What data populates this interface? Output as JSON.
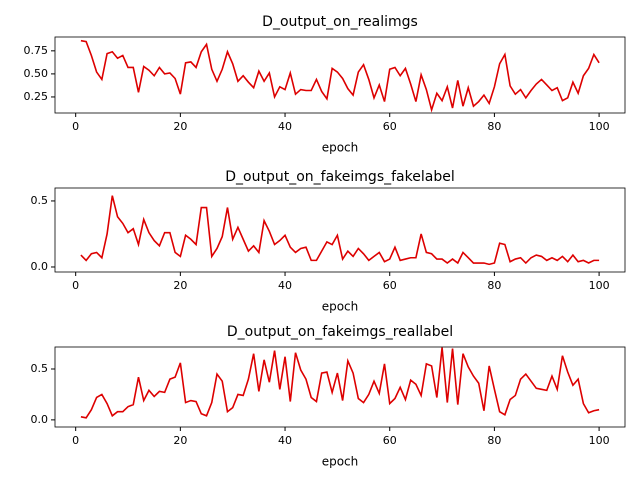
{
  "chart_data": [
    {
      "type": "line",
      "title": "D_output_on_realimgs",
      "xlabel": "epoch",
      "color": "#dd0000",
      "x": [
        1,
        2,
        3,
        4,
        5,
        6,
        7,
        8,
        9,
        10,
        11,
        12,
        13,
        14,
        15,
        16,
        17,
        18,
        19,
        20,
        21,
        22,
        23,
        24,
        25,
        26,
        27,
        28,
        29,
        30,
        31,
        32,
        33,
        34,
        35,
        36,
        37,
        38,
        39,
        40,
        41,
        42,
        43,
        44,
        45,
        46,
        47,
        48,
        49,
        50,
        51,
        52,
        53,
        54,
        55,
        56,
        57,
        58,
        59,
        60,
        61,
        62,
        63,
        64,
        65,
        66,
        67,
        68,
        69,
        70,
        71,
        72,
        73,
        74,
        75,
        76,
        77,
        78,
        79,
        80,
        81,
        82,
        83,
        84,
        85,
        86,
        87,
        88,
        89,
        90,
        91,
        92,
        93,
        94,
        95,
        96,
        97,
        98,
        99,
        100
      ],
      "values": [
        0.86,
        0.85,
        0.7,
        0.52,
        0.44,
        0.72,
        0.74,
        0.67,
        0.7,
        0.57,
        0.57,
        0.3,
        0.58,
        0.54,
        0.48,
        0.57,
        0.5,
        0.51,
        0.45,
        0.28,
        0.62,
        0.63,
        0.57,
        0.74,
        0.82,
        0.55,
        0.42,
        0.55,
        0.74,
        0.61,
        0.42,
        0.48,
        0.41,
        0.35,
        0.53,
        0.42,
        0.51,
        0.25,
        0.36,
        0.33,
        0.51,
        0.28,
        0.33,
        0.32,
        0.32,
        0.44,
        0.31,
        0.23,
        0.56,
        0.52,
        0.45,
        0.34,
        0.27,
        0.52,
        0.6,
        0.44,
        0.24,
        0.38,
        0.2,
        0.55,
        0.57,
        0.48,
        0.56,
        0.39,
        0.2,
        0.49,
        0.33,
        0.11,
        0.29,
        0.21,
        0.36,
        0.13,
        0.43,
        0.15,
        0.35,
        0.15,
        0.2,
        0.27,
        0.18,
        0.36,
        0.61,
        0.71,
        0.37,
        0.28,
        0.33,
        0.24,
        0.32,
        0.39,
        0.44,
        0.38,
        0.32,
        0.35,
        0.21,
        0.24,
        0.41,
        0.29,
        0.48,
        0.56,
        0.71,
        0.62
      ],
      "xlim": [
        -3.95,
        104.95
      ],
      "xticks": [
        0,
        20,
        40,
        60,
        80,
        100
      ],
      "ylim": [
        0.076,
        0.9
      ],
      "yticks": [
        {
          "value": 0.25,
          "label": "0.25"
        },
        {
          "value": 0.5,
          "label": "0.50"
        },
        {
          "value": 0.75,
          "label": "0.75"
        }
      ]
    },
    {
      "type": "line",
      "title": "D_output_on_fakeimgs_fakelabel",
      "xlabel": "epoch",
      "color": "#dd0000",
      "x": [
        1,
        2,
        3,
        4,
        5,
        6,
        7,
        8,
        9,
        10,
        11,
        12,
        13,
        14,
        15,
        16,
        17,
        18,
        19,
        20,
        21,
        22,
        23,
        24,
        25,
        26,
        27,
        28,
        29,
        30,
        31,
        32,
        33,
        34,
        35,
        36,
        37,
        38,
        39,
        40,
        41,
        42,
        43,
        44,
        45,
        46,
        47,
        48,
        49,
        50,
        51,
        52,
        53,
        54,
        55,
        56,
        57,
        58,
        59,
        60,
        61,
        62,
        63,
        64,
        65,
        66,
        67,
        68,
        69,
        70,
        71,
        72,
        73,
        74,
        75,
        76,
        77,
        78,
        79,
        80,
        81,
        82,
        83,
        84,
        85,
        86,
        87,
        88,
        89,
        90,
        91,
        92,
        93,
        94,
        95,
        96,
        97,
        98,
        99,
        100
      ],
      "values": [
        0.09,
        0.05,
        0.1,
        0.11,
        0.07,
        0.25,
        0.54,
        0.38,
        0.33,
        0.26,
        0.29,
        0.17,
        0.36,
        0.26,
        0.2,
        0.16,
        0.26,
        0.26,
        0.11,
        0.08,
        0.24,
        0.21,
        0.17,
        0.45,
        0.45,
        0.08,
        0.14,
        0.23,
        0.45,
        0.21,
        0.3,
        0.21,
        0.12,
        0.16,
        0.11,
        0.35,
        0.27,
        0.17,
        0.2,
        0.24,
        0.15,
        0.11,
        0.14,
        0.15,
        0.05,
        0.05,
        0.12,
        0.19,
        0.17,
        0.24,
        0.06,
        0.12,
        0.08,
        0.14,
        0.1,
        0.05,
        0.08,
        0.11,
        0.04,
        0.06,
        0.15,
        0.05,
        0.06,
        0.07,
        0.07,
        0.25,
        0.11,
        0.1,
        0.06,
        0.06,
        0.03,
        0.06,
        0.03,
        0.11,
        0.07,
        0.03,
        0.03,
        0.03,
        0.02,
        0.03,
        0.18,
        0.17,
        0.04,
        0.06,
        0.07,
        0.03,
        0.07,
        0.09,
        0.08,
        0.05,
        0.07,
        0.05,
        0.08,
        0.04,
        0.09,
        0.04,
        0.05,
        0.03,
        0.05,
        0.05
      ],
      "xlim": [
        -3.95,
        104.95
      ],
      "xticks": [
        0,
        20,
        40,
        60,
        80,
        100
      ],
      "ylim": [
        -0.038,
        0.598
      ],
      "yticks": [
        {
          "value": 0,
          "label": "0.0"
        },
        0.5
      ]
    },
    {
      "type": "line",
      "title": "D_output_on_fakeimgs_reallabel",
      "xlabel": "epoch",
      "color": "#dd0000",
      "x": [
        1,
        2,
        3,
        4,
        5,
        6,
        7,
        8,
        9,
        10,
        11,
        12,
        13,
        14,
        15,
        16,
        17,
        18,
        19,
        20,
        21,
        22,
        23,
        24,
        25,
        26,
        27,
        28,
        29,
        30,
        31,
        32,
        33,
        34,
        35,
        36,
        37,
        38,
        39,
        40,
        41,
        42,
        43,
        44,
        45,
        46,
        47,
        48,
        49,
        50,
        51,
        52,
        53,
        54,
        55,
        56,
        57,
        58,
        59,
        60,
        61,
        62,
        63,
        64,
        65,
        66,
        67,
        68,
        69,
        70,
        71,
        72,
        73,
        74,
        75,
        76,
        77,
        78,
        79,
        80,
        81,
        82,
        83,
        84,
        85,
        86,
        87,
        88,
        89,
        90,
        91,
        92,
        93,
        94,
        95,
        96,
        97,
        98,
        99,
        100
      ],
      "values": [
        0.03,
        0.02,
        0.1,
        0.22,
        0.25,
        0.16,
        0.04,
        0.08,
        0.08,
        0.13,
        0.15,
        0.42,
        0.19,
        0.29,
        0.23,
        0.28,
        0.27,
        0.4,
        0.42,
        0.56,
        0.17,
        0.19,
        0.18,
        0.06,
        0.04,
        0.17,
        0.45,
        0.38,
        0.08,
        0.12,
        0.25,
        0.24,
        0.4,
        0.65,
        0.28,
        0.59,
        0.37,
        0.68,
        0.3,
        0.62,
        0.18,
        0.66,
        0.49,
        0.4,
        0.22,
        0.18,
        0.46,
        0.47,
        0.27,
        0.46,
        0.19,
        0.58,
        0.46,
        0.21,
        0.17,
        0.25,
        0.38,
        0.26,
        0.55,
        0.16,
        0.21,
        0.32,
        0.2,
        0.39,
        0.35,
        0.24,
        0.55,
        0.53,
        0.22,
        0.71,
        0.17,
        0.7,
        0.15,
        0.65,
        0.52,
        0.43,
        0.36,
        0.09,
        0.53,
        0.3,
        0.08,
        0.05,
        0.2,
        0.24,
        0.4,
        0.45,
        0.38,
        0.31,
        0.3,
        0.29,
        0.43,
        0.3,
        0.63,
        0.47,
        0.34,
        0.4,
        0.16,
        0.07,
        0.09,
        0.1
      ],
      "xlim": [
        -3.95,
        104.95
      ],
      "xticks": [
        0,
        20,
        40,
        60,
        80,
        100
      ],
      "ylim": [
        -0.07,
        0.716
      ],
      "yticks": [
        {
          "value": 0,
          "label": "0.0"
        },
        0.5
      ]
    }
  ]
}
